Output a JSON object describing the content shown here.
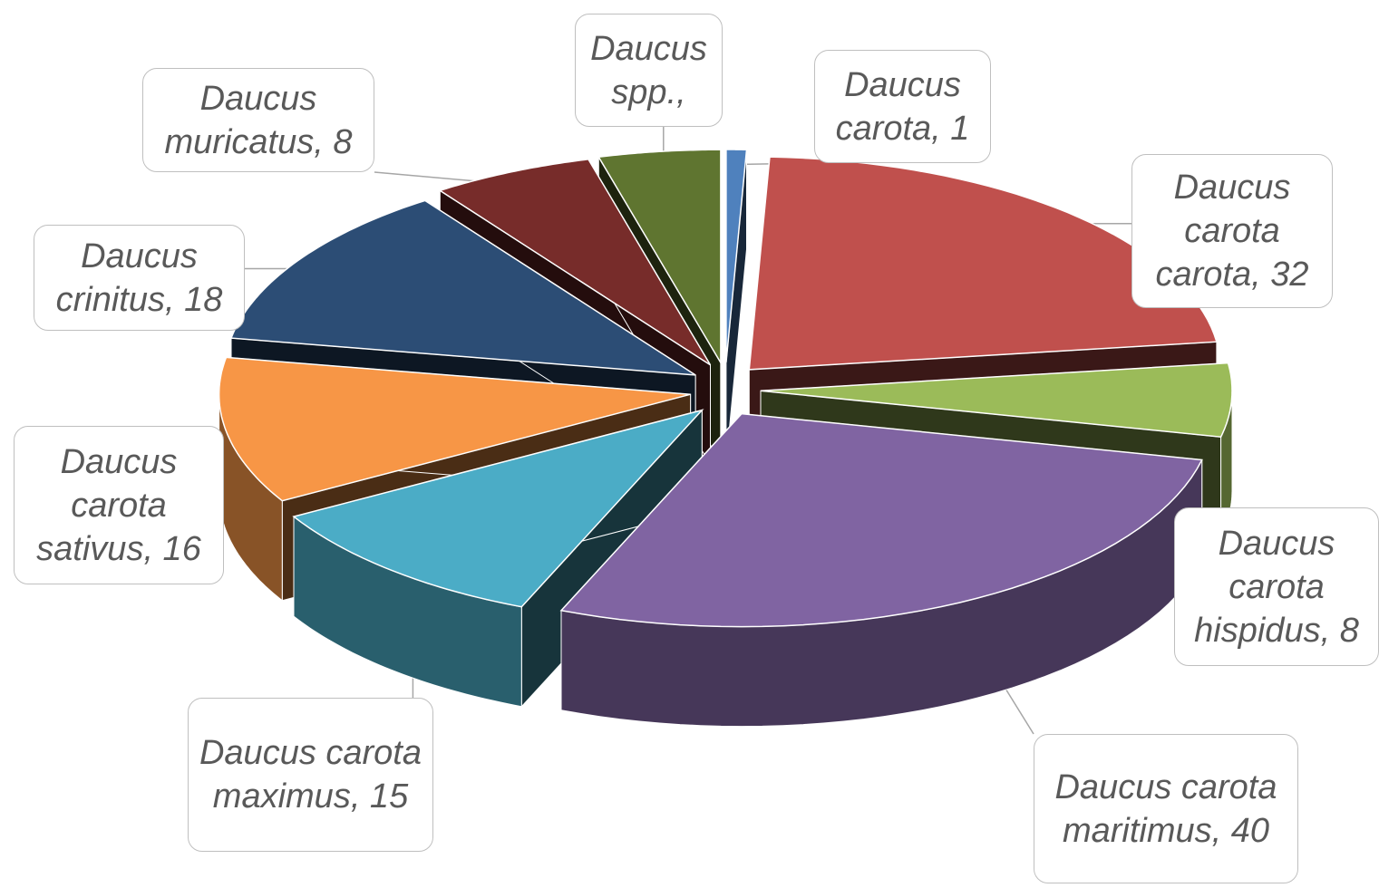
{
  "chart_data": {
    "type": "pie3d",
    "value_labels": [
      "Daucus carota, 1",
      "Daucus carota carota, 32",
      "Daucus carota hispidus, 8",
      "Daucus carota maritimus, 40",
      "Daucus carota maximus, 15",
      "Daucus carota sativus, 16",
      "Daucus crinitus, 18",
      "Daucus muricatus, 8",
      "Daucus spp.,"
    ],
    "values": [
      1,
      32,
      8,
      40,
      15,
      16,
      18,
      8,
      6
    ],
    "colors": [
      "#4f81bd",
      "#c0504d",
      "#9bbb59",
      "#8064a2",
      "#4bacc6",
      "#f79646",
      "#2c4d75",
      "#772c2a",
      "#5f7530"
    ]
  }
}
